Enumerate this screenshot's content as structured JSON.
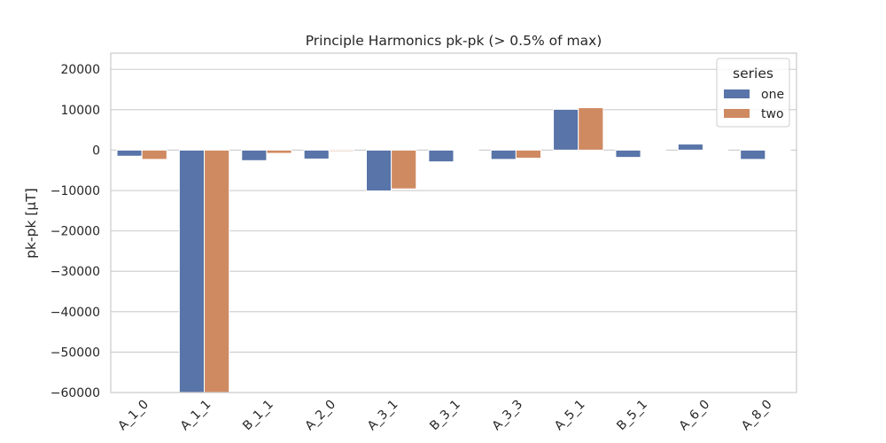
{
  "chart_data": {
    "type": "bar",
    "title": "Principle Harmonics pk-pk (> 0.5% of max)",
    "xlabel": "",
    "ylabel": "pk-pk [µT]",
    "categories": [
      "A_1_0",
      "A_1_1",
      "B_1_1",
      "A_2_0",
      "A_3_1",
      "B_3_1",
      "A_3_3",
      "A_5_1",
      "B_5_1",
      "A_6_0",
      "A_8_0"
    ],
    "series": [
      {
        "name": "one",
        "color": "#5874a8",
        "values": [
          -1500,
          -60000,
          -2600,
          -2200,
          -10100,
          -2900,
          -2300,
          10100,
          -1800,
          1500,
          -2300
        ]
      },
      {
        "name": "two",
        "color": "#cf8a62",
        "values": [
          -2300,
          -60000,
          -800,
          -300,
          -9600,
          0,
          -2000,
          10500,
          0,
          0,
          0
        ]
      }
    ],
    "ylim": [
      -60000,
      24000
    ],
    "yticks": [
      20000,
      10000,
      0,
      -10000,
      -20000,
      -30000,
      -40000,
      -50000,
      -60000
    ],
    "ytick_labels": [
      "20000",
      "10000",
      "0",
      "−10000",
      "−20000",
      "−30000",
      "−40000",
      "−50000",
      "−60000"
    ],
    "grid": true,
    "legend": {
      "title": "series",
      "position": "top-right"
    }
  }
}
